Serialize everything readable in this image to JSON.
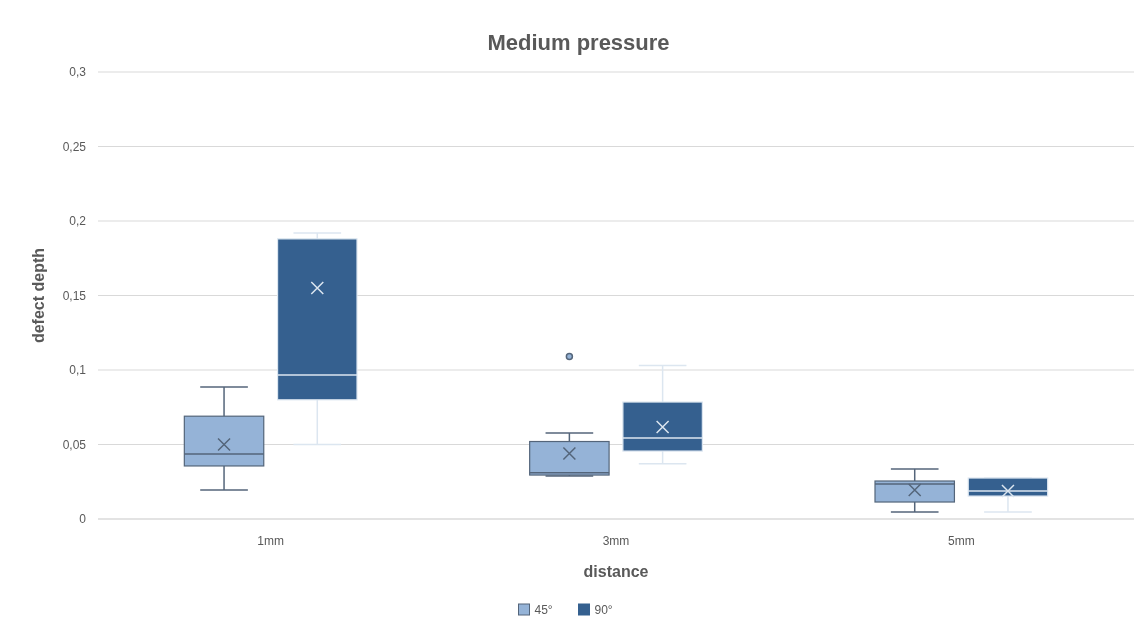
{
  "chart_data": {
    "type": "box",
    "title": "Medium pressure",
    "xlabel": "distance",
    "ylabel": "defect depth",
    "categories": [
      "1mm",
      "3mm",
      "5mm"
    ],
    "ylim": [
      0,
      0.3
    ],
    "yticks": [
      {
        "value": 0,
        "label": "0"
      },
      {
        "value": 0.05,
        "label": "0,05"
      },
      {
        "value": 0.1,
        "label": "0,1"
      },
      {
        "value": 0.15,
        "label": "0,15"
      },
      {
        "value": 0.2,
        "label": "0,2"
      },
      {
        "value": 0.25,
        "label": "0,25"
      },
      {
        "value": 0.3,
        "label": "0,3"
      }
    ],
    "grid": "y",
    "legend": "bottom",
    "series": [
      {
        "name": "45°",
        "color": "#95b3d7",
        "boxes": [
          {
            "low": 0.0195,
            "q1": 0.0356,
            "median": 0.0436,
            "q3": 0.069,
            "high": 0.0886,
            "mean": 0.05
          },
          {
            "low": 0.0289,
            "q1": 0.0295,
            "median": 0.031,
            "q3": 0.052,
            "high": 0.0577,
            "mean": 0.044,
            "outliers": [
              0.109
            ]
          },
          {
            "low": 0.0047,
            "q1": 0.0114,
            "median": 0.0235,
            "q3": 0.0255,
            "high": 0.0336,
            "mean": 0.0195
          }
        ]
      },
      {
        "name": "90°",
        "color": "#35608f",
        "boxes": [
          {
            "low": 0.05,
            "q1": 0.08,
            "median": 0.0966,
            "q3": 0.188,
            "high": 0.192,
            "mean": 0.155
          },
          {
            "low": 0.037,
            "q1": 0.0456,
            "median": 0.0544,
            "q3": 0.0785,
            "high": 0.103,
            "mean": 0.0617
          },
          {
            "low": 0.0047,
            "q1": 0.0154,
            "median": 0.0188,
            "q3": 0.0275,
            "high": 0.0275,
            "mean": 0.0188
          }
        ]
      }
    ]
  }
}
